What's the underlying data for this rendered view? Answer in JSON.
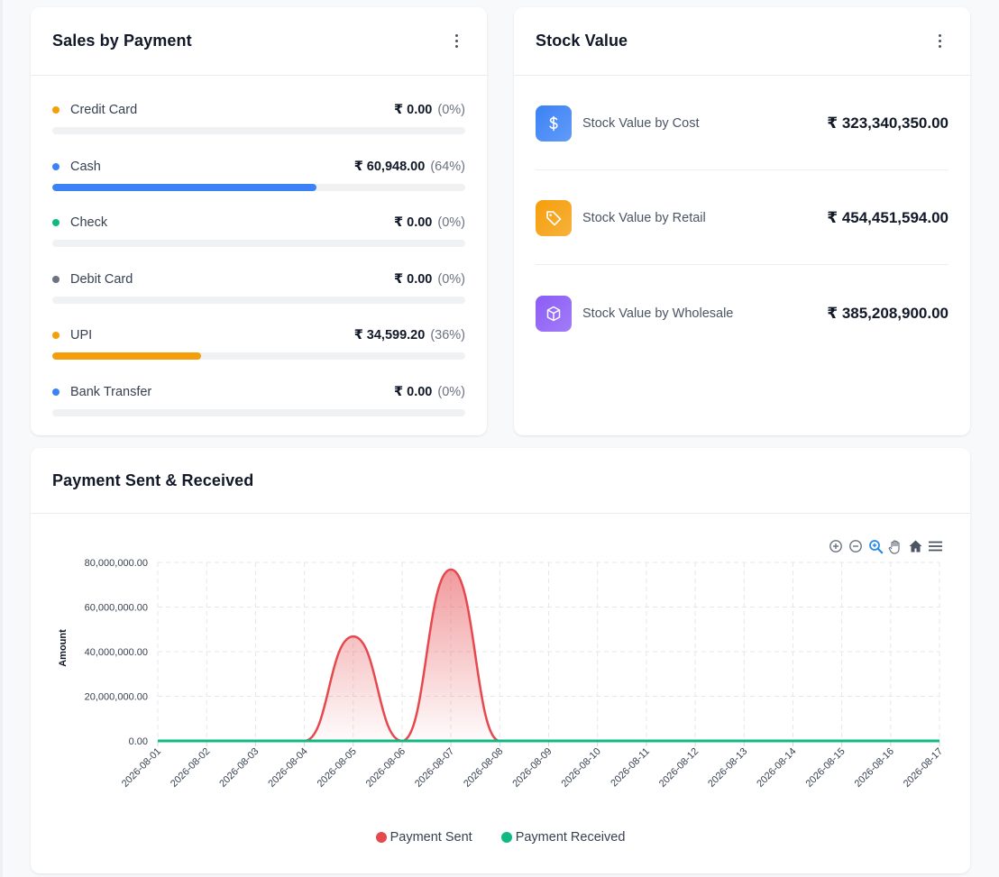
{
  "sales_by_payment": {
    "title": "Sales by Payment",
    "items": [
      {
        "name": "Credit Card",
        "amount": "₹ 0.00",
        "percent": "(0%)",
        "fraction": 0.0,
        "color": "#f59e0b"
      },
      {
        "name": "Cash",
        "amount": "₹ 60,948.00",
        "percent": "(64%)",
        "fraction": 0.64,
        "color": "#3b82f6"
      },
      {
        "name": "Check",
        "amount": "₹ 0.00",
        "percent": "(0%)",
        "fraction": 0.0,
        "color": "#10b981"
      },
      {
        "name": "Debit Card",
        "amount": "₹ 0.00",
        "percent": "(0%)",
        "fraction": 0.0,
        "color": "#6b7280"
      },
      {
        "name": "UPI",
        "amount": "₹ 34,599.20",
        "percent": "(36%)",
        "fraction": 0.36,
        "color": "#f59e0b"
      },
      {
        "name": "Bank Transfer",
        "amount": "₹ 0.00",
        "percent": "(0%)",
        "fraction": 0.0,
        "color": "#3b82f6"
      }
    ]
  },
  "stock_value": {
    "title": "Stock Value",
    "items": [
      {
        "label": "Stock Value by Cost",
        "value": "₹ 323,340,350.00",
        "icon": "dollar-icon",
        "color": "#3b82f6"
      },
      {
        "label": "Stock Value by Retail",
        "value": "₹ 454,451,594.00",
        "icon": "tag-icon",
        "color": "#f59e0b"
      },
      {
        "label": "Stock Value by Wholesale",
        "value": "₹ 385,208,900.00",
        "icon": "box-icon",
        "color": "#8b5cf6"
      }
    ]
  },
  "payment_chart": {
    "title": "Payment Sent & Received",
    "toolbar": [
      "zoom-in-icon",
      "zoom-out-icon",
      "selection-zoom-icon",
      "pan-hand-icon",
      "home-reset-icon",
      "menu-icon"
    ]
  },
  "chart_data": {
    "type": "area",
    "x": [
      "2026-08-01",
      "2026-08-02",
      "2026-08-03",
      "2026-08-04",
      "2026-08-05",
      "2026-08-06",
      "2026-08-07",
      "2026-08-08",
      "2026-08-09",
      "2026-08-10",
      "2026-08-11",
      "2026-08-12",
      "2026-08-13",
      "2026-08-14",
      "2026-08-15",
      "2026-08-16",
      "2026-08-17"
    ],
    "series": [
      {
        "name": "Payment Sent",
        "color": "#e5484d",
        "values": [
          0,
          0,
          0,
          0,
          46800000,
          0,
          76800000,
          0,
          0,
          0,
          0,
          0,
          0,
          0,
          0,
          0,
          0
        ]
      },
      {
        "name": "Payment Received",
        "color": "#10b981",
        "values": [
          0,
          0,
          0,
          0,
          0,
          0,
          0,
          0,
          0,
          0,
          0,
          0,
          0,
          0,
          0,
          0,
          0
        ]
      }
    ],
    "ylabel": "Amount",
    "yticks": [
      "0.00",
      "20,000,000.00",
      "40,000,000.00",
      "60,000,000.00",
      "80,000,000.00"
    ],
    "ylim": [
      0,
      80000000
    ],
    "grid": true,
    "legend": "bottom"
  }
}
